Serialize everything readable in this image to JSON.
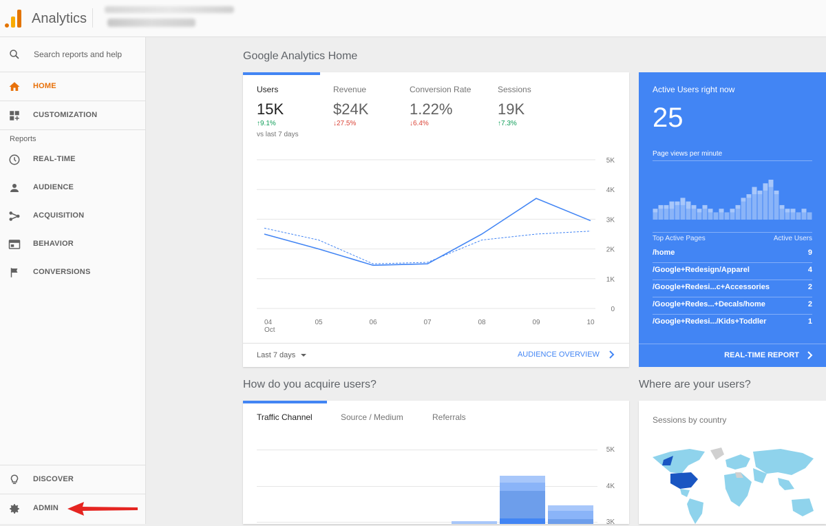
{
  "header": {
    "app_title": "Analytics"
  },
  "sidebar": {
    "search_placeholder": "Search reports and help",
    "items": [
      {
        "label": "HOME",
        "icon": "home-icon"
      },
      {
        "label": "CUSTOMIZATION",
        "icon": "dashboard-icon"
      },
      {
        "label": "REAL-TIME",
        "icon": "clock-icon"
      },
      {
        "label": "AUDIENCE",
        "icon": "person-icon"
      },
      {
        "label": "ACQUISITION",
        "icon": "acquisition-icon"
      },
      {
        "label": "BEHAVIOR",
        "icon": "behavior-icon"
      },
      {
        "label": "CONVERSIONS",
        "icon": "flag-icon"
      }
    ],
    "reports_header": "Reports",
    "bottom_items": [
      {
        "label": "DISCOVER",
        "icon": "lightbulb-icon"
      },
      {
        "label": "ADMIN",
        "icon": "gear-icon"
      }
    ]
  },
  "home": {
    "title": "Google Analytics Home",
    "metrics": [
      {
        "name": "Users",
        "value": "15K",
        "change": "9.1%",
        "direction": "up"
      },
      {
        "name": "Revenue",
        "value": "$24K",
        "change": "27.5%",
        "direction": "down"
      },
      {
        "name": "Conversion Rate",
        "value": "1.22%",
        "change": "6.4%",
        "direction": "down"
      },
      {
        "name": "Sessions",
        "value": "19K",
        "change": "7.3%",
        "direction": "up"
      }
    ],
    "vs_label": "vs last 7 days",
    "range_label": "Last 7 days",
    "overview_link": "AUDIENCE OVERVIEW"
  },
  "realtime": {
    "title": "Active Users right now",
    "count": "25",
    "subtitle": "Page views per minute",
    "table_header_page": "Top Active Pages",
    "table_header_users": "Active Users",
    "rows": [
      {
        "page": "/home",
        "users": "9"
      },
      {
        "page": "/Google+Redesign/Apparel",
        "users": "4"
      },
      {
        "page": "/Google+Redesi...c+Accessories",
        "users": "2"
      },
      {
        "page": "/Google+Redes...+Decals/home",
        "users": "2"
      },
      {
        "page": "/Google+Redesi.../Kids+Toddler",
        "users": "1"
      }
    ],
    "report_link": "REAL-TIME REPORT",
    "bars": [
      3,
      4,
      4,
      5,
      5,
      6,
      5,
      4,
      3,
      4,
      3,
      2,
      3,
      2,
      3,
      4,
      6,
      7,
      9,
      8,
      10,
      11,
      8,
      4,
      3,
      3,
      2,
      3,
      2
    ],
    "bar_light": [
      2,
      3,
      3,
      3,
      4,
      4,
      3,
      3,
      2,
      3,
      2,
      2,
      2,
      2,
      2,
      3,
      5,
      6,
      7,
      7,
      8,
      9,
      7,
      3,
      2,
      2,
      2,
      2,
      2
    ]
  },
  "acquire": {
    "title": "How do you acquire users?",
    "tabs": [
      "Traffic Channel",
      "Source / Medium",
      "Referrals"
    ],
    "y_ticks": [
      "5K",
      "4K",
      "3K"
    ]
  },
  "where": {
    "title": "Where are your users?",
    "subtitle": "Sessions by country"
  },
  "colors": {
    "accent": "#4285f4",
    "active_nav": "#e8710a",
    "up": "#0f9d58",
    "down": "#db4437"
  },
  "chart_data": {
    "type": "line",
    "categories": [
      "04 Oct",
      "05",
      "06",
      "07",
      "08",
      "09",
      "10"
    ],
    "ylim": [
      0,
      5000
    ],
    "y_ticks": [
      "0",
      "1K",
      "2K",
      "3K",
      "4K",
      "5K"
    ],
    "series": [
      {
        "values": [
          2500,
          2000,
          1450,
          1500,
          2500,
          3700,
          2950
        ]
      },
      {
        "values": [
          2700,
          2300,
          1500,
          1550,
          2300,
          2500,
          2600
        ]
      }
    ]
  }
}
